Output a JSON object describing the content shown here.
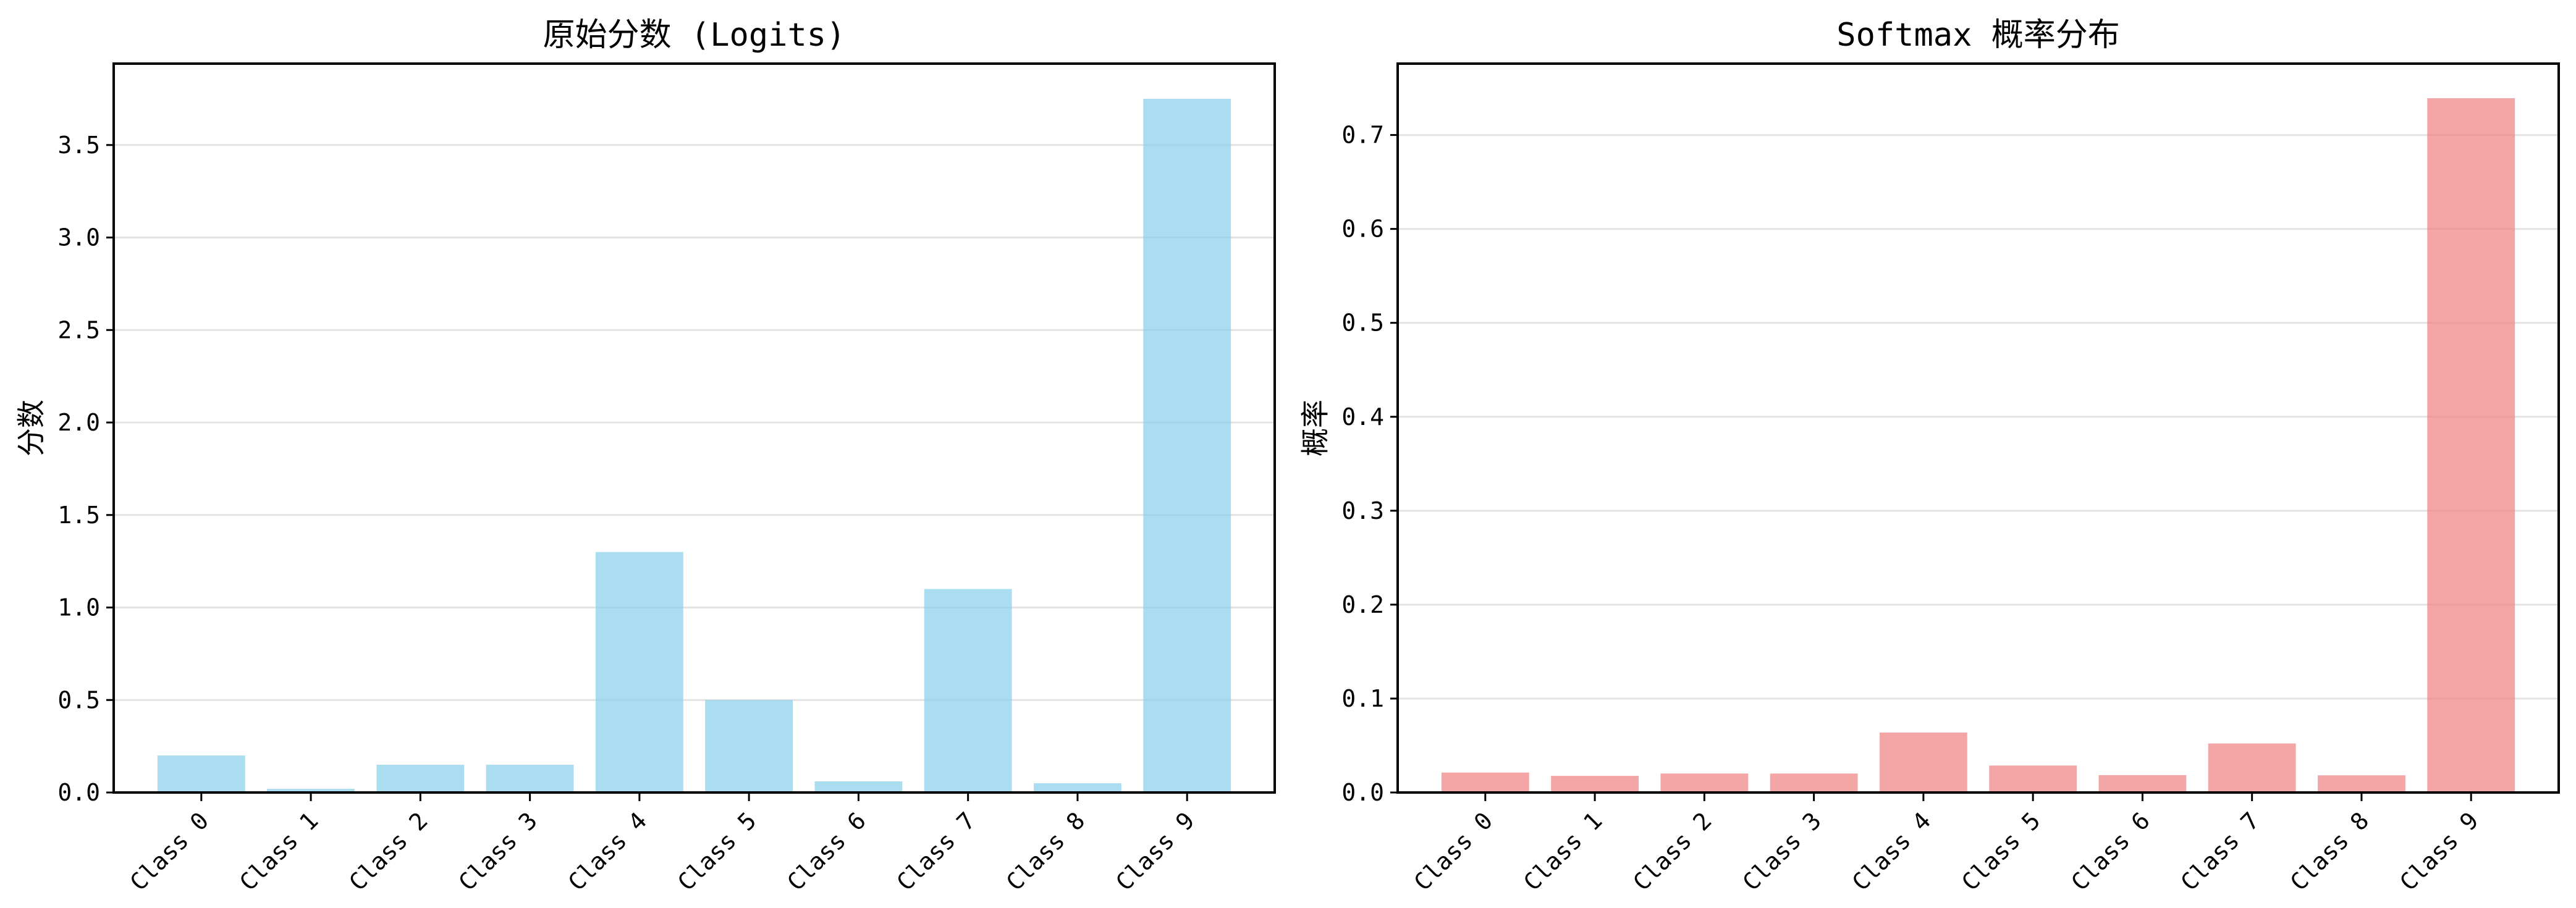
{
  "chart_data": [
    {
      "type": "bar",
      "title": "原始分数 (Logits)",
      "xlabel": "",
      "ylabel": "分数",
      "categories": [
        "Class 0",
        "Class 1",
        "Class 2",
        "Class 3",
        "Class 4",
        "Class 5",
        "Class 6",
        "Class 7",
        "Class 8",
        "Class 9"
      ],
      "values": [
        0.2,
        0.02,
        0.15,
        0.15,
        1.3,
        0.5,
        0.06,
        1.1,
        0.05,
        3.75
      ],
      "ylim": [
        0,
        3.94
      ],
      "yticks": [
        "0.0",
        "0.5",
        "1.0",
        "1.5",
        "2.0",
        "2.5",
        "3.0",
        "3.5"
      ],
      "color": "#87CEEB",
      "grid": "y",
      "x_tick_rotation": 45
    },
    {
      "type": "bar",
      "title": "Softmax 概率分布",
      "xlabel": "",
      "ylabel": "概率",
      "categories": [
        "Class 0",
        "Class 1",
        "Class 2",
        "Class 3",
        "Class 4",
        "Class 5",
        "Class 6",
        "Class 7",
        "Class 8",
        "Class 9"
      ],
      "values": [
        0.0212,
        0.0177,
        0.0202,
        0.0202,
        0.0638,
        0.0287,
        0.0185,
        0.0522,
        0.0183,
        0.7392
      ],
      "ylim": [
        0,
        0.776
      ],
      "yticks": [
        "0.0",
        "0.1",
        "0.2",
        "0.3",
        "0.4",
        "0.5",
        "0.6",
        "0.7"
      ],
      "color": "#F08080",
      "grid": "y",
      "x_tick_rotation": 45
    }
  ]
}
